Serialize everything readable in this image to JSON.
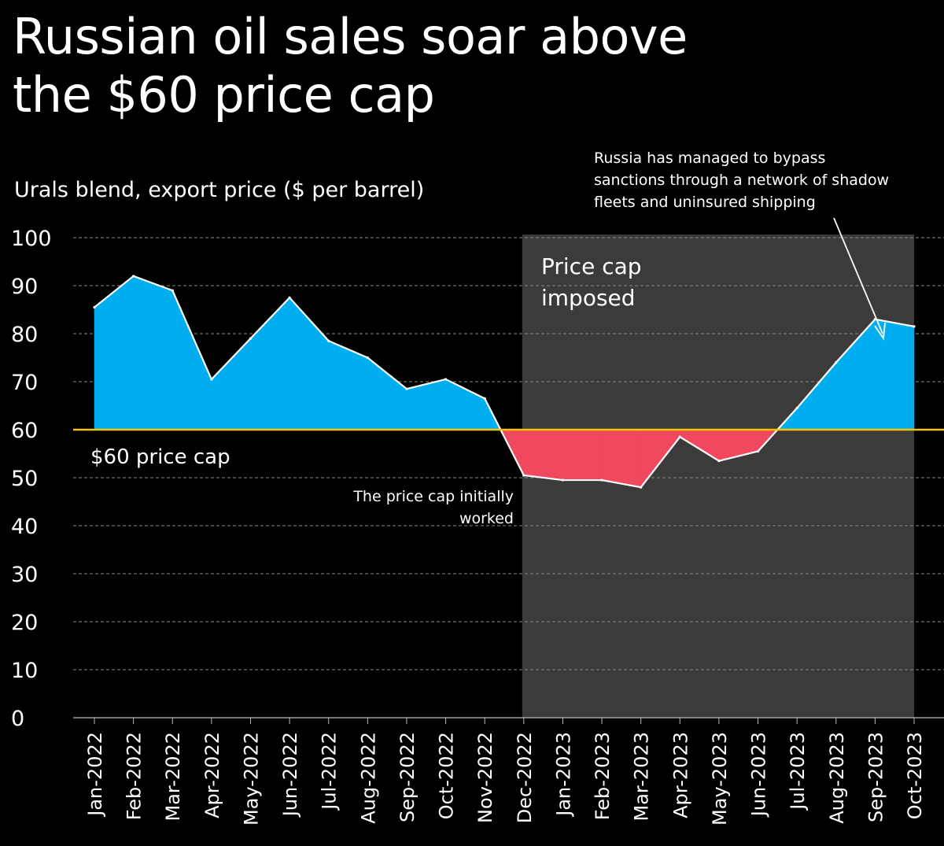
{
  "title_lines": [
    "Russian oil sales soar above",
    "the $60 price cap"
  ],
  "chart_data": {
    "type": "area",
    "title": "Russian oil sales soar above the $60 price cap",
    "ylabel": "Urals blend, export price ($ per barrel)",
    "xlabel": "",
    "ylim": [
      0,
      100
    ],
    "yticks": [
      0,
      10,
      20,
      30,
      40,
      50,
      60,
      70,
      80,
      90,
      100
    ],
    "grid": true,
    "categories": [
      "Jan-2022",
      "Feb-2022",
      "Mar-2022",
      "Apr-2022",
      "May-2022",
      "Jun-2022",
      "Jul-2022",
      "Aug-2022",
      "Sep-2022",
      "Oct-2022",
      "Nov-2022",
      "Dec-2022",
      "Jan-2023",
      "Feb-2023",
      "Mar-2023",
      "Apr-2023",
      "May-2023",
      "Jun-2023",
      "Jul-2023",
      "Aug-2023",
      "Sep-2023",
      "Oct-2023"
    ],
    "series": [
      {
        "name": "Urals blend, export price",
        "values": [
          85.5,
          92.0,
          89.0,
          70.5,
          79.0,
          87.5,
          78.5,
          75.0,
          68.5,
          70.5,
          66.5,
          50.5,
          49.5,
          49.5,
          48.0,
          58.5,
          53.5,
          55.5,
          64.5,
          74.0,
          83.0,
          81.5
        ]
      }
    ],
    "reference_line": {
      "value": 60,
      "label": "$60 price cap"
    },
    "shaded_region": {
      "from": "Dec-2022",
      "to": "Oct-2023",
      "label_lines": [
        "Price cap",
        "imposed"
      ]
    },
    "annotations": [
      {
        "id": "worked",
        "lines": [
          "The price cap initially",
          "worked"
        ]
      },
      {
        "id": "bypass",
        "lines": [
          "Russia has managed to bypass",
          "sanctions through a network of shadow",
          "fleets and uninsured shipping"
        ]
      }
    ],
    "colors": {
      "above": "#00aeef",
      "below": "#f0485e",
      "cap_line": "#f5c400",
      "shade": "#3c3b3a",
      "grid": "#8a8a8a",
      "background": "#000000"
    }
  }
}
